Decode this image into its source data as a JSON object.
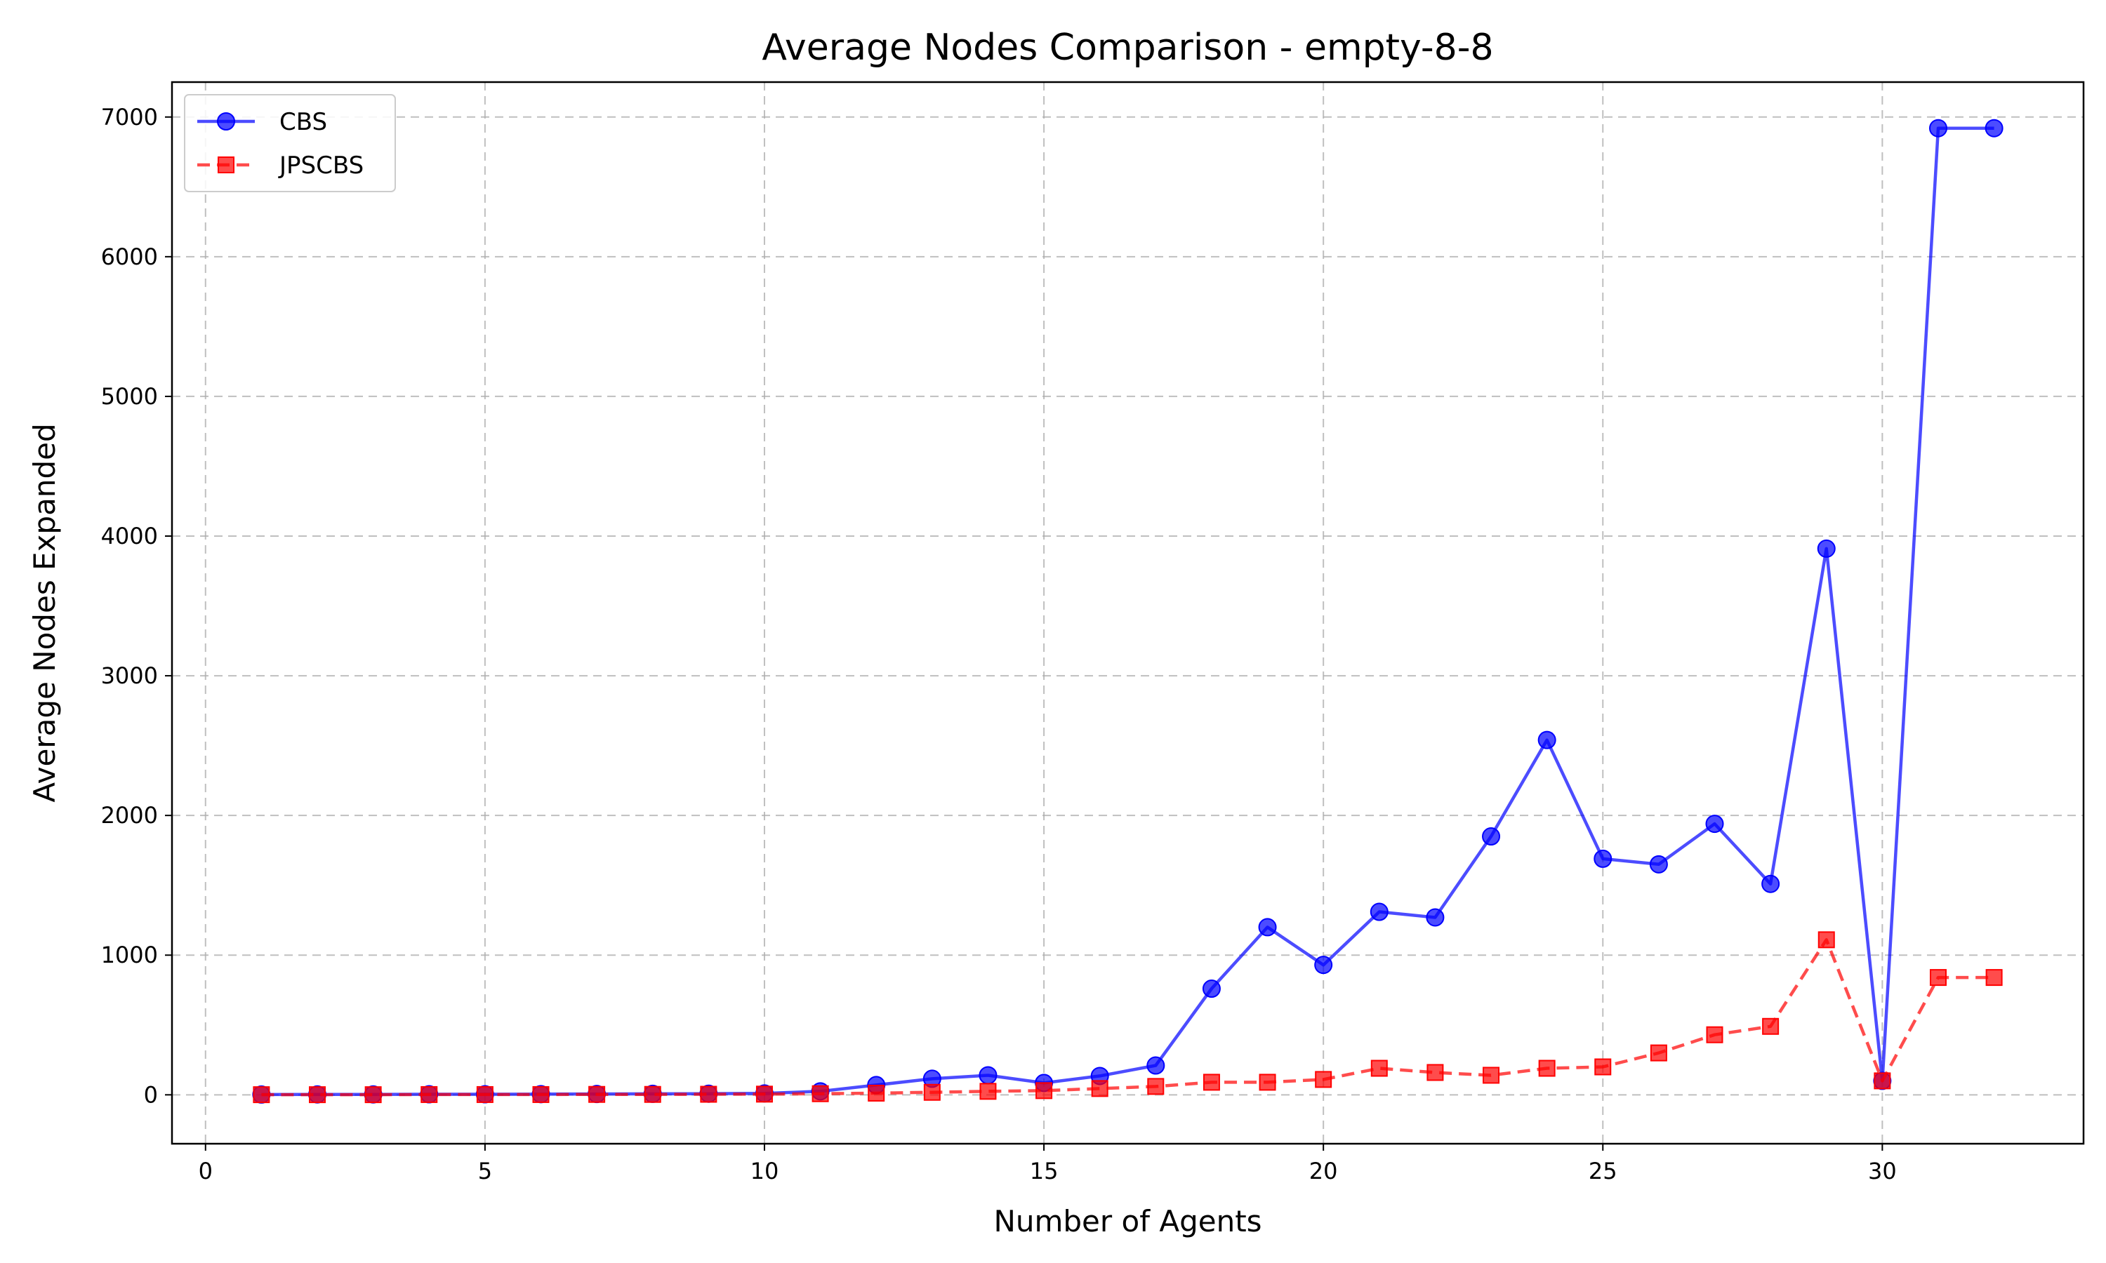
{
  "chart_data": {
    "type": "line",
    "title": "Average Nodes Comparison - empty-8-8",
    "xlabel": "Number of Agents",
    "ylabel": "Average Nodes Expanded",
    "xlim": [
      -0.6,
      33.6
    ],
    "ylim": [
      -350,
      7250
    ],
    "xticks": [
      0,
      5,
      10,
      15,
      20,
      25,
      30
    ],
    "yticks": [
      0,
      1000,
      2000,
      3000,
      4000,
      5000,
      6000,
      7000
    ],
    "grid": true,
    "legend_position": "top-left",
    "x": [
      1,
      2,
      3,
      4,
      5,
      6,
      7,
      8,
      9,
      10,
      11,
      12,
      13,
      14,
      15,
      16,
      17,
      18,
      19,
      20,
      21,
      22,
      23,
      24,
      25,
      26,
      27,
      28,
      29,
      30,
      31,
      32
    ],
    "series": [
      {
        "name": "CBS",
        "color": "#0000ff",
        "line_style": "solid",
        "marker": "circle",
        "values": [
          2,
          3,
          3,
          4,
          4,
          5,
          6,
          7,
          8,
          10,
          25,
          70,
          115,
          140,
          85,
          135,
          210,
          760,
          1200,
          930,
          1310,
          1270,
          1850,
          2540,
          1690,
          1650,
          1940,
          1510,
          3910,
          100,
          6920,
          6920
        ]
      },
      {
        "name": "JPSCBS",
        "color": "#ff0000",
        "line_style": "dashed",
        "marker": "square",
        "values": [
          1,
          1,
          1,
          2,
          2,
          2,
          3,
          3,
          4,
          5,
          8,
          12,
          18,
          25,
          30,
          45,
          60,
          90,
          90,
          110,
          190,
          160,
          140,
          190,
          200,
          300,
          430,
          490,
          1110,
          100,
          840,
          840
        ]
      }
    ]
  }
}
